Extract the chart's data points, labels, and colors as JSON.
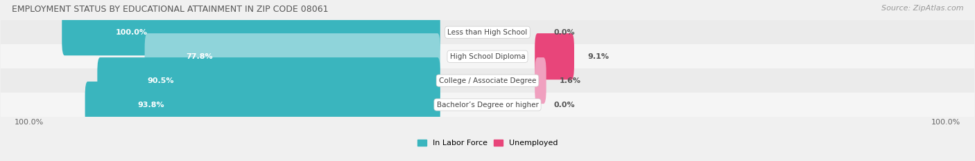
{
  "title": "EMPLOYMENT STATUS BY EDUCATIONAL ATTAINMENT IN ZIP CODE 08061",
  "source": "Source: ZipAtlas.com",
  "categories": [
    "Less than High School",
    "High School Diploma",
    "College / Associate Degree",
    "Bachelor’s Degree or higher"
  ],
  "labor_force": [
    100.0,
    77.8,
    90.5,
    93.8
  ],
  "unemployed": [
    0.0,
    9.1,
    1.6,
    0.0
  ],
  "lf_colors": [
    "#3ab5be",
    "#8fd4da",
    "#3ab5be",
    "#3ab5be"
  ],
  "un_colors": [
    "#f0a0bf",
    "#e8457a",
    "#f0a0bf",
    "#f0a0bf"
  ],
  "row_bg_colors": [
    "#ebebeb",
    "#f5f5f5",
    "#ebebeb",
    "#f5f5f5"
  ],
  "bg_color": "#f0f0f0",
  "label_fontsize": 8,
  "title_fontsize": 9,
  "source_fontsize": 8,
  "cat_fontsize": 7.5,
  "axis_label_left": "100.0%",
  "axis_label_right": "100.0%",
  "legend_lf": "In Labor Force",
  "legend_un": "Unemployed",
  "lf_legend_color": "#3ab5be",
  "un_legend_color": "#e8457a"
}
